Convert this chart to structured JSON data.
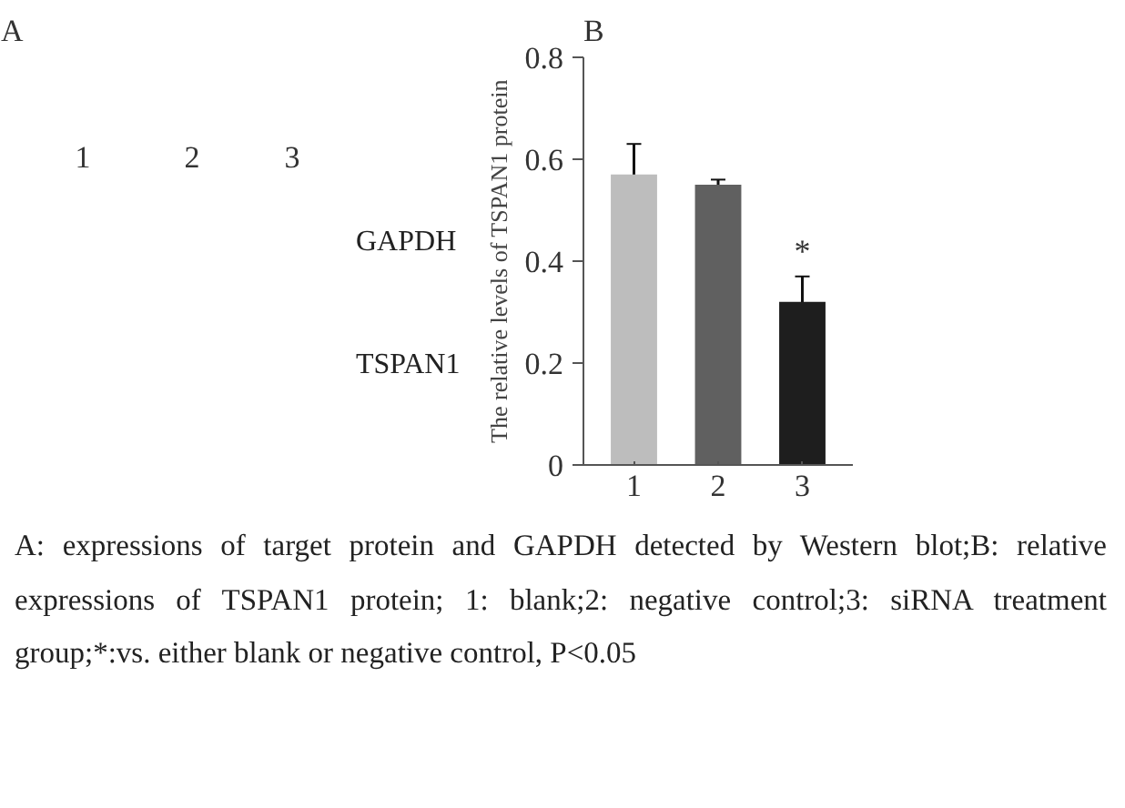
{
  "chart_data": [
    {
      "type": "other",
      "title": "A",
      "annotations": [
        "1",
        "2",
        "3",
        "GAPDH",
        "TSPAN1"
      ]
    },
    {
      "type": "bar",
      "title": "B",
      "ylabel": "The relative levels of TSPAN1 protein",
      "categories": [
        "1",
        "2",
        "3"
      ],
      "values": [
        0.57,
        0.55,
        0.32
      ],
      "errors": [
        0.06,
        0.01,
        0.05
      ],
      "colors": [
        "#bdbdbd",
        "#606060",
        "#1e1e1e"
      ],
      "ylim": [
        0,
        0.8
      ],
      "yticks": [
        0,
        0.2,
        0.4,
        0.6,
        0.8
      ],
      "grid": false,
      "annotations": [
        "*",
        "A: expressions of target protein and GAPDH detected by Western blot;B: relative expressions of TSPAN1 protein; 1: blank;2: negative control;3: siRNA treatment group;*:vs. either blank or negative control, P<0.05"
      ]
    }
  ]
}
